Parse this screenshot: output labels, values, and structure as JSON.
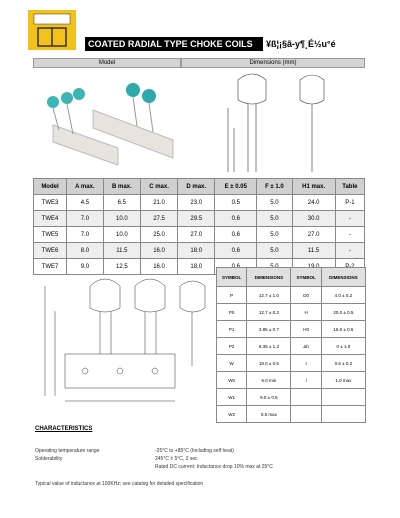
{
  "header": {
    "title": "COATED RADIAL TYPE CHOKE COILS",
    "subtitle": "¥ß¦¡§ã-y¶¸É½u°é"
  },
  "sections": {
    "model": "Model",
    "dimensions": "Dimensions (mm)"
  },
  "table": {
    "columns": [
      "Model",
      "A max.",
      "B max.",
      "C max.",
      "D max.",
      "E ± 0.05",
      "F ± 1.0",
      "H1 max.",
      "Table"
    ],
    "rows": [
      [
        "TWE3",
        "4.5",
        "6.5",
        "21.0",
        "23.0",
        "0.5",
        "5.0",
        "24.0",
        "P-1"
      ],
      [
        "TWE4",
        "7.0",
        "10.0",
        "27.5",
        "29.5",
        "0.6",
        "5.0",
        "30.0",
        "-"
      ],
      [
        "TWE5",
        "7.0",
        "10.0",
        "25.0",
        "27.0",
        "0.6",
        "5.0",
        "27.0",
        "-"
      ],
      [
        "TWE6",
        "8.0",
        "11.5",
        "16.0",
        "18.0",
        "0.6",
        "5.0",
        "11.5",
        "-"
      ],
      [
        "TWE7",
        "9.0",
        "12.5",
        "16.0",
        "18.0",
        "0.6",
        "5.0",
        "19.0",
        "P-2"
      ]
    ]
  },
  "tape_table": {
    "columns": [
      "SYMBOL",
      "DIMENSIONS",
      "SYMBOL",
      "DIMENSIONS"
    ],
    "rows": [
      [
        "P",
        "12.7 ± 1.0",
        "D0",
        "4.0 ± 0.2"
      ],
      [
        "P0",
        "12.7 ± 0.3",
        "H",
        "20.0 ± 0.5"
      ],
      [
        "P1",
        "3.85 ± 0.7",
        "H0",
        "16.0 ± 0.5"
      ],
      [
        "P2",
        "6.35 ± 1.3",
        "Δh",
        "0 ± 1.0"
      ],
      [
        "W",
        "18.0 ± 0.5",
        "t",
        "0.6 ± 0.2"
      ],
      [
        "W0",
        "6.0 min",
        "l",
        "1.0 max"
      ],
      [
        "W1",
        "9.0 ± 0.5",
        "",
        ""
      ],
      [
        "W2",
        "0.5 max",
        "",
        ""
      ]
    ]
  },
  "characteristics": {
    "title": "CHARACTERISTICS",
    "items": [
      [
        "Operating temperature range",
        "-25°C to +85°C (Including self heat)"
      ],
      [
        "Solderability",
        "245°C ± 5°C, 3 sec"
      ],
      [
        "",
        "Rated DC current: Inductance drop 10% max at 25°C"
      ]
    ],
    "note": "Typical value of inductance at 100KHz; see catalog for detailed specification"
  }
}
